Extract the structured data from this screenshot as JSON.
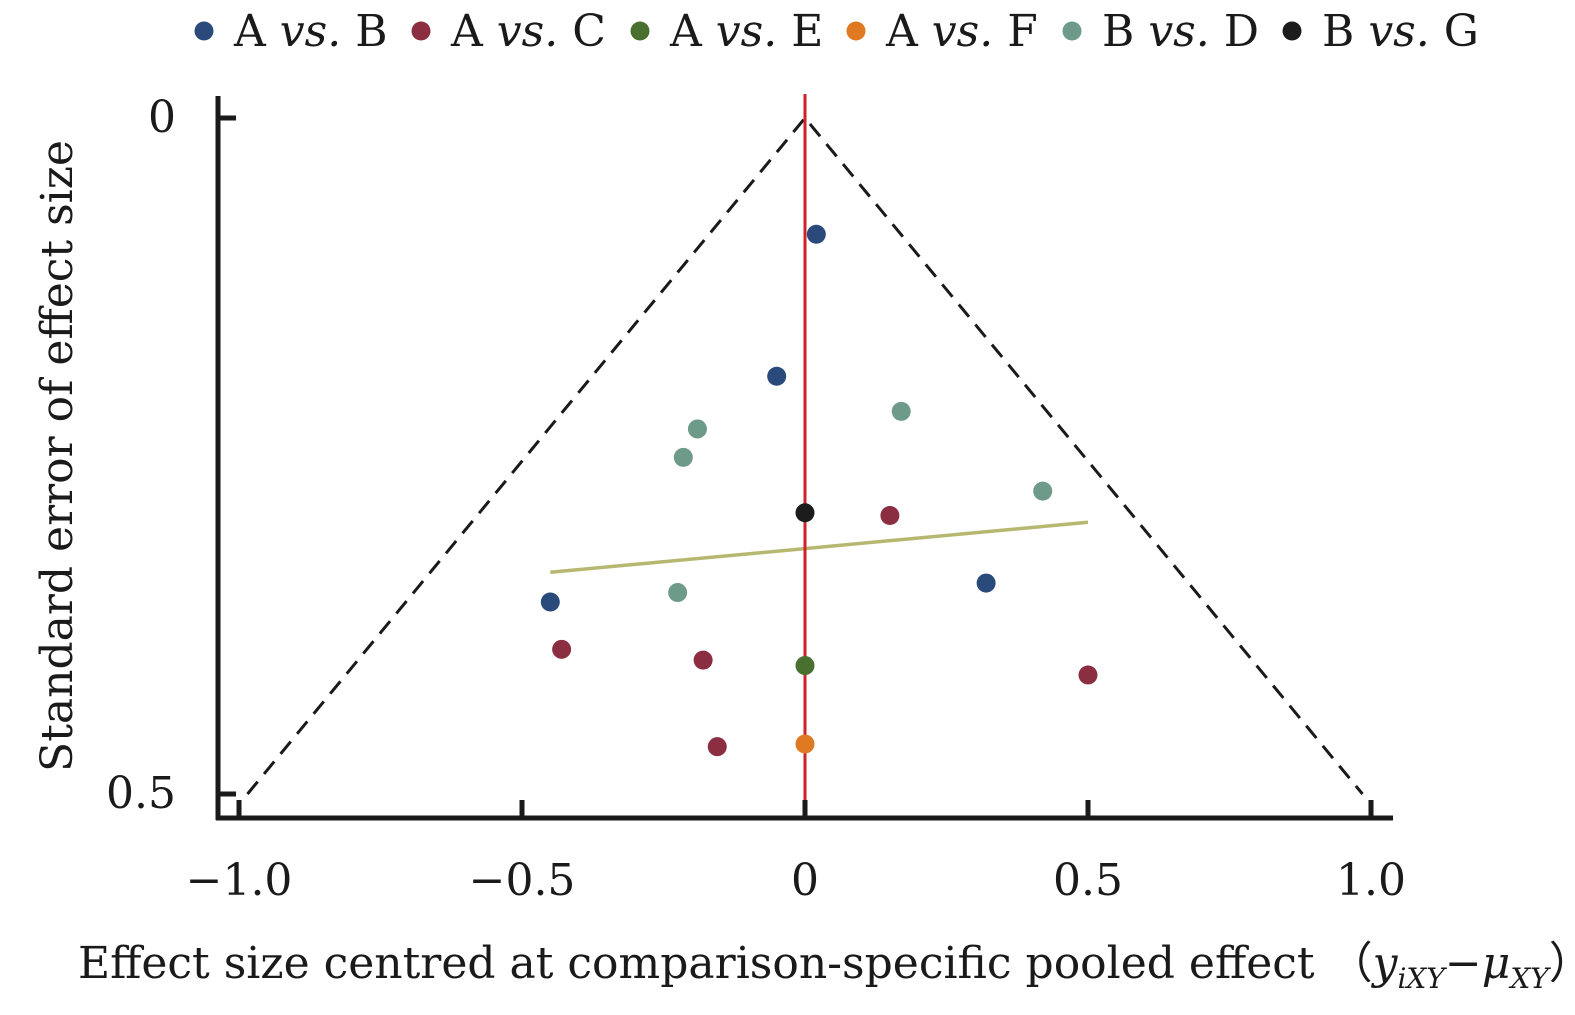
{
  "chart_data": {
    "type": "scatter",
    "title": "",
    "xlabel": "Effect size centred at comparison-specific pooled effect",
    "xlabel_formula": {
      "open": "（",
      "y": "y",
      "y_sub": "iXY",
      "minus": "−",
      "mu": "μ",
      "mu_sub": "XY",
      "close": "）"
    },
    "ylabel": "Standard error of effect size",
    "xlim": [
      -1.0,
      1.0
    ],
    "ylim": [
      0,
      0.5
    ],
    "y_reversed": true,
    "x_ticks": [
      -1.0,
      -0.5,
      0,
      0.5,
      1.0
    ],
    "x_tick_labels": [
      "−1.0",
      "−0.5",
      "0",
      "0.5",
      "1.0"
    ],
    "y_ticks": [
      0,
      0.5
    ],
    "y_tick_labels": [
      "0",
      "0.5"
    ],
    "grid": false,
    "legend_position": "top",
    "series": [
      {
        "name_left": "A",
        "name_mid": "vs.",
        "name_right": "B",
        "color": "#2b4a7c",
        "points": [
          {
            "x": 0.02,
            "y": 0.086
          },
          {
            "x": -0.05,
            "y": 0.191
          },
          {
            "x": -0.45,
            "y": 0.358
          },
          {
            "x": 0.32,
            "y": 0.344
          }
        ]
      },
      {
        "name_left": "A",
        "name_mid": "vs.",
        "name_right": "C",
        "color": "#8b2e42",
        "points": [
          {
            "x": 0.15,
            "y": 0.294
          },
          {
            "x": -0.43,
            "y": 0.393
          },
          {
            "x": -0.18,
            "y": 0.401
          },
          {
            "x": 0.5,
            "y": 0.412
          },
          {
            "x": -0.155,
            "y": 0.465
          }
        ]
      },
      {
        "name_left": "A",
        "name_mid": "vs.",
        "name_right": "E",
        "color": "#4a7030",
        "points": [
          {
            "x": 0.0,
            "y": 0.405
          }
        ]
      },
      {
        "name_left": "A",
        "name_mid": "vs.",
        "name_right": "F",
        "color": "#e07a22",
        "points": [
          {
            "x": 0.0,
            "y": 0.463
          }
        ]
      },
      {
        "name_left": "B",
        "name_mid": "vs.",
        "name_right": "D",
        "color": "#6e9a8a",
        "points": [
          {
            "x": 0.17,
            "y": 0.217
          },
          {
            "x": -0.19,
            "y": 0.23
          },
          {
            "x": -0.215,
            "y": 0.251
          },
          {
            "x": 0.42,
            "y": 0.276
          },
          {
            "x": -0.225,
            "y": 0.351
          }
        ]
      },
      {
        "name_left": "B",
        "name_mid": "vs.",
        "name_right": "G",
        "color": "#1c1c1c",
        "points": [
          {
            "x": 0.0,
            "y": 0.292
          }
        ]
      }
    ],
    "reference_line": {
      "x": 0,
      "color": "#d0202a"
    },
    "funnel": {
      "apex": [
        0,
        0
      ],
      "left_base": [
        -0.985,
        0.5
      ],
      "right_base": [
        0.985,
        0.5
      ],
      "color": "#1a1a1a"
    },
    "regression_line": {
      "x": [
        -0.45,
        0.5
      ],
      "y": [
        0.336,
        0.299
      ],
      "color": "#b7b870"
    }
  }
}
